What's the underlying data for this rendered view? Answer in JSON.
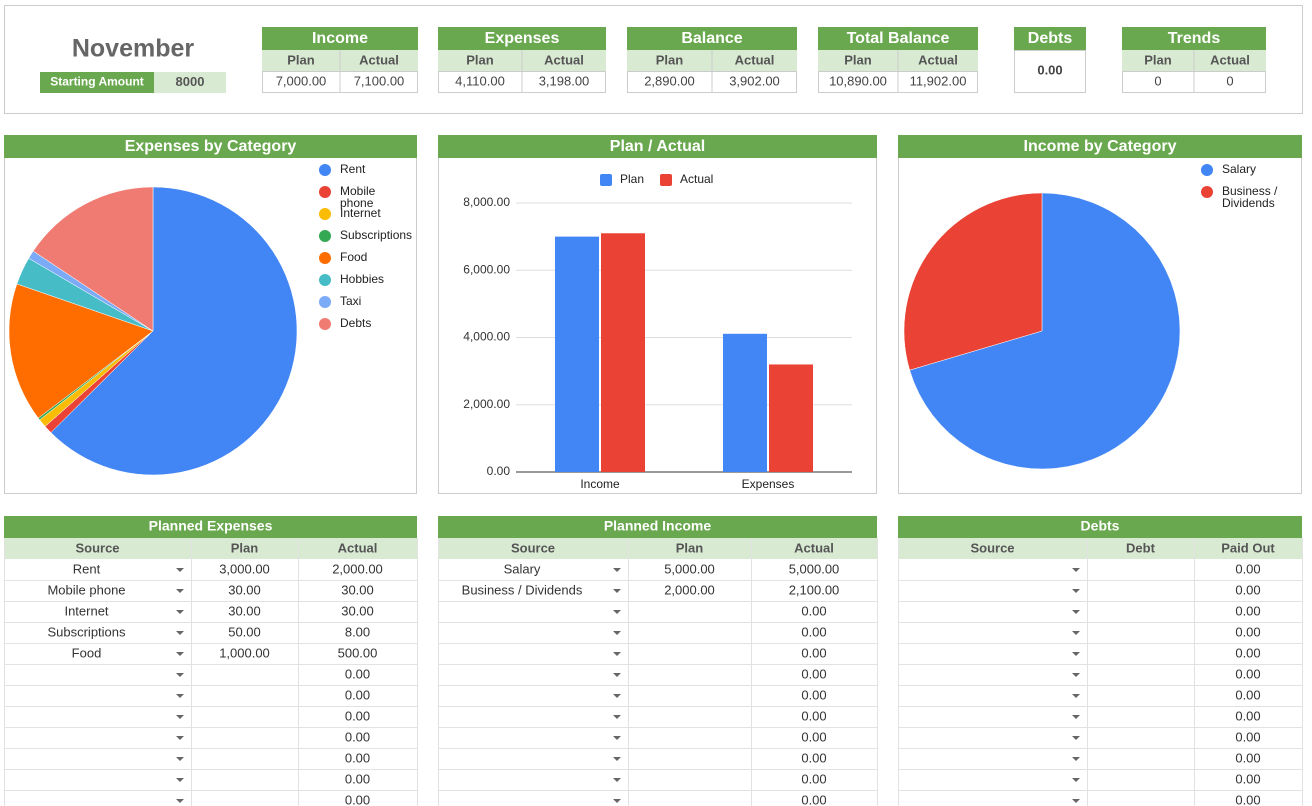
{
  "header": {
    "month": "November",
    "starting_amount": {
      "label": "Starting Amount",
      "value": 8000
    }
  },
  "summary": [
    {
      "title": "Income",
      "columns": [
        "Plan",
        "Actual"
      ],
      "values": [
        "7,000.00",
        "7,100.00"
      ]
    },
    {
      "title": "Expenses",
      "columns": [
        "Plan",
        "Actual"
      ],
      "values": [
        "4,110.00",
        "3,198.00"
      ]
    },
    {
      "title": "Balance",
      "columns": [
        "Plan",
        "Actual"
      ],
      "values": [
        "2,890.00",
        "3,902.00"
      ]
    },
    {
      "title": "Total Balance",
      "columns": [
        "Plan",
        "Actual"
      ],
      "values": [
        "10,890.00",
        "11,902.00"
      ]
    },
    {
      "title": "Debts",
      "values": [
        "0.00"
      ]
    },
    {
      "title": "Trends",
      "columns": [
        "Plan",
        "Actual"
      ],
      "values": [
        "0",
        "0"
      ]
    }
  ],
  "chart_data": [
    {
      "type": "pie",
      "title": "Expenses by Category",
      "categories": [
        "Rent",
        "Mobile phone",
        "Internet",
        "Subscriptions",
        "Food",
        "Hobbies",
        "Taxi",
        "Debts"
      ],
      "values": [
        2000,
        30,
        30,
        8,
        500,
        100,
        30,
        500
      ],
      "colors": [
        "#4285f4",
        "#ea4335",
        "#fbbc04",
        "#34a853",
        "#ff6d01",
        "#46bdc6",
        "#7baaf7",
        "#f07b72"
      ]
    },
    {
      "type": "bar",
      "title": "Plan / Actual",
      "categories": [
        "Income",
        "Expenses"
      ],
      "series": [
        {
          "name": "Plan",
          "color": "#4285f4",
          "values": [
            7000,
            4110
          ]
        },
        {
          "name": "Actual",
          "color": "#ea4335",
          "values": [
            7100,
            3198
          ]
        }
      ],
      "ylim": [
        0,
        8000
      ],
      "yticks": [
        {
          "value": 0,
          "label": "0.00"
        },
        {
          "value": 2000,
          "label": "2,000.00"
        },
        {
          "value": 4000,
          "label": "4,000.00"
        },
        {
          "value": 6000,
          "label": "6,000.00"
        },
        {
          "value": 8000,
          "label": "8,000.00"
        }
      ],
      "grid": true
    },
    {
      "type": "pie",
      "title": "Income by Category",
      "categories": [
        "Salary",
        "Business / Dividends"
      ],
      "values": [
        5000,
        2100
      ],
      "colors": [
        "#4285f4",
        "#ea4335"
      ]
    }
  ],
  "tables": [
    {
      "title": "Planned Expenses",
      "columns": [
        "Source",
        "Plan",
        "Actual"
      ],
      "rows": [
        [
          "Rent",
          "3,000.00",
          "2,000.00"
        ],
        [
          "Mobile phone",
          "30.00",
          "30.00"
        ],
        [
          "Internet",
          "30.00",
          "30.00"
        ],
        [
          "Subscriptions",
          "50.00",
          "8.00"
        ],
        [
          "Food",
          "1,000.00",
          "500.00"
        ],
        [
          null,
          null,
          "0.00"
        ],
        [
          null,
          null,
          "0.00"
        ],
        [
          null,
          null,
          "0.00"
        ],
        [
          null,
          null,
          "0.00"
        ],
        [
          null,
          null,
          "0.00"
        ],
        [
          null,
          null,
          "0.00"
        ],
        [
          null,
          null,
          "0.00"
        ]
      ]
    },
    {
      "title": "Planned Income",
      "columns": [
        "Source",
        "Plan",
        "Actual"
      ],
      "rows": [
        [
          "Salary",
          "5,000.00",
          "5,000.00"
        ],
        [
          "Business / Dividends",
          "2,000.00",
          "2,100.00"
        ],
        [
          null,
          null,
          "0.00"
        ],
        [
          null,
          null,
          "0.00"
        ],
        [
          null,
          null,
          "0.00"
        ],
        [
          null,
          null,
          "0.00"
        ],
        [
          null,
          null,
          "0.00"
        ],
        [
          null,
          null,
          "0.00"
        ],
        [
          null,
          null,
          "0.00"
        ],
        [
          null,
          null,
          "0.00"
        ],
        [
          null,
          null,
          "0.00"
        ],
        [
          null,
          null,
          "0.00"
        ]
      ]
    },
    {
      "title": "Debts",
      "columns": [
        "Source",
        "Debt",
        "Paid Out"
      ],
      "rows": [
        [
          null,
          null,
          "0.00"
        ],
        [
          null,
          null,
          "0.00"
        ],
        [
          null,
          null,
          "0.00"
        ],
        [
          null,
          null,
          "0.00"
        ],
        [
          null,
          null,
          "0.00"
        ],
        [
          null,
          null,
          "0.00"
        ],
        [
          null,
          null,
          "0.00"
        ],
        [
          null,
          null,
          "0.00"
        ],
        [
          null,
          null,
          "0.00"
        ],
        [
          null,
          null,
          "0.00"
        ],
        [
          null,
          null,
          "0.00"
        ],
        [
          null,
          null,
          "0.00"
        ]
      ]
    }
  ]
}
